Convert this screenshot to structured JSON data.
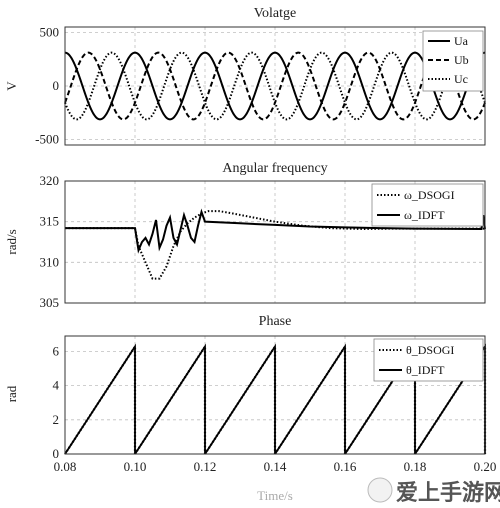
{
  "watermark": "爱上手游网",
  "xlabel": "Time/s",
  "chart_data": [
    {
      "type": "line",
      "title": "Volatge",
      "ylabel": "V",
      "xlim": [
        0.08,
        0.2
      ],
      "ylim": [
        -550,
        550
      ],
      "xticks": [
        "0.08",
        "0.10",
        "0.12",
        "0.14",
        "0.16",
        "0.18",
        "0.20"
      ],
      "yticks": [
        {
          "v": 500,
          "label": "500"
        },
        {
          "v": 0,
          "label": "0"
        },
        {
          "v": -500,
          "label": "-500"
        }
      ],
      "amplitude": 311,
      "frequency_hz": 50,
      "legend_position": "top-right",
      "series": [
        {
          "name": "Ua",
          "style": "solid",
          "phase_deg": 0
        },
        {
          "name": "Ub",
          "style": "dashed",
          "phase_deg": -120
        },
        {
          "name": "Uc",
          "style": "dotted",
          "phase_deg": 120
        }
      ]
    },
    {
      "type": "line",
      "title": "Angular frequency",
      "ylabel": "rad/s",
      "xlim": [
        0.08,
        0.2
      ],
      "ylim": [
        305,
        320
      ],
      "xticks": [
        "0.08",
        "0.10",
        "0.12",
        "0.14",
        "0.16",
        "0.18",
        "0.20"
      ],
      "yticks": [
        {
          "v": 320,
          "label": "320"
        },
        {
          "v": 315,
          "label": "315"
        },
        {
          "v": 310,
          "label": "310"
        },
        {
          "v": 305,
          "label": "305"
        }
      ],
      "legend_position": "top-right",
      "series": [
        {
          "name": "ω_DSOGI",
          "style": "dotted",
          "x": [
            0.08,
            0.1,
            0.101,
            0.103,
            0.105,
            0.107,
            0.109,
            0.111,
            0.113,
            0.115,
            0.117,
            0.119,
            0.121,
            0.124,
            0.128,
            0.134,
            0.14,
            0.148,
            0.156,
            0.165,
            0.175,
            0.2
          ],
          "y": [
            314.2,
            314.2,
            312,
            310,
            308,
            308,
            309.5,
            312,
            313.8,
            314.8,
            315.5,
            316,
            316.3,
            316.3,
            316,
            315.5,
            315,
            314.5,
            314.2,
            314.1,
            314.15,
            314.15
          ]
        },
        {
          "name": "ω_IDFT",
          "style": "solid",
          "x": [
            0.08,
            0.1,
            0.101,
            0.102,
            0.103,
            0.104,
            0.105,
            0.106,
            0.107,
            0.108,
            0.109,
            0.11,
            0.111,
            0.112,
            0.113,
            0.114,
            0.115,
            0.116,
            0.117,
            0.118,
            0.119,
            0.12,
            0.13,
            0.14,
            0.15,
            0.16,
            0.17,
            0.18,
            0.199,
            0.1995,
            0.2
          ],
          "y": [
            314.2,
            314.2,
            311.5,
            312.5,
            313,
            312.2,
            313.5,
            315.2,
            311.8,
            312.8,
            314.5,
            315.5,
            313,
            312.2,
            314,
            315.8,
            314.5,
            313,
            312.5,
            314.5,
            316.2,
            315,
            314.8,
            314.6,
            314.4,
            314.3,
            314.2,
            314.15,
            314.1,
            315.8,
            314.1
          ]
        }
      ]
    },
    {
      "type": "line",
      "title": "Phase",
      "ylabel": "rad",
      "xlim": [
        0.08,
        0.2
      ],
      "ylim": [
        0,
        6.9
      ],
      "xticks": [
        "0.08",
        "0.10",
        "0.12",
        "0.14",
        "0.16",
        "0.18",
        "0.20"
      ],
      "yticks": [
        {
          "v": 6,
          "label": "6"
        },
        {
          "v": 4,
          "label": "4"
        },
        {
          "v": 2,
          "label": "2"
        },
        {
          "v": 0,
          "label": "0"
        }
      ],
      "legend_position": "top-right",
      "series": [
        {
          "name": "θ_DSOGI",
          "style": "dotted"
        },
        {
          "name": "θ_IDFT",
          "style": "solid"
        }
      ],
      "ramp_max": 6.283,
      "ramp_resets": [
        0.1,
        0.12,
        0.14,
        0.16,
        0.18,
        0.2
      ]
    }
  ]
}
